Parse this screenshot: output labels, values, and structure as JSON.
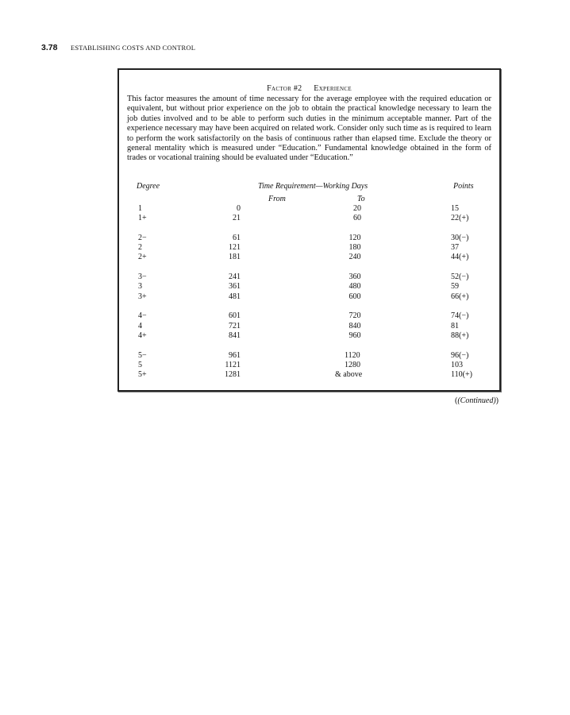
{
  "header": {
    "page_number": "3.78",
    "running_title": "ESTABLISHING COSTS AND CONTROL"
  },
  "factor": {
    "label": "Factor #2",
    "name": "Experience",
    "description": "This factor measures the amount of time necessary for the average employee with the required education or equivalent, but without prior experience on the job to obtain the practical knowledge necessary to learn the job duties involved and to be able to perform such duties in the minimum acceptable manner.  Part of the experience necessary may have been acquired on related work. Consider only such time as is required to learn to perform the work satisfactorily on the basis of continuous rather than elapsed time.  Exclude the theory or general mentality which is measured under “Education.” Fundamental knowledge obtained in the form of trades or vocational training should be evaluated under “Education.”"
  },
  "table": {
    "headers": {
      "degree": "Degree",
      "time": "Time Requirement—Working Days",
      "from": "From",
      "to": "To",
      "points": "Points"
    },
    "groups": [
      [
        [
          "1",
          "0",
          "20",
          "15"
        ],
        [
          "1+",
          "21",
          "60",
          "22(+)"
        ]
      ],
      [
        [
          "2−",
          "61",
          "120",
          "30(−)"
        ],
        [
          "2",
          "121",
          "180",
          "37"
        ],
        [
          "2+",
          "181",
          "240",
          "44(+)"
        ]
      ],
      [
        [
          "3−",
          "241",
          "360",
          "52(−)"
        ],
        [
          "3",
          "361",
          "480",
          "59"
        ],
        [
          "3+",
          "481",
          "600",
          "66(+)"
        ]
      ],
      [
        [
          "4−",
          "601",
          "720",
          "74(−)"
        ],
        [
          "4",
          "721",
          "840",
          "81"
        ],
        [
          "4+",
          "841",
          "960",
          "88(+)"
        ]
      ],
      [
        [
          "5−",
          "961",
          "1120",
          "96(−)"
        ],
        [
          "5",
          "1121",
          "1280",
          "103"
        ],
        [
          "5+",
          "1281",
          "& above",
          "110(+)"
        ]
      ]
    ]
  },
  "footer": {
    "continued": "(Continued)"
  }
}
